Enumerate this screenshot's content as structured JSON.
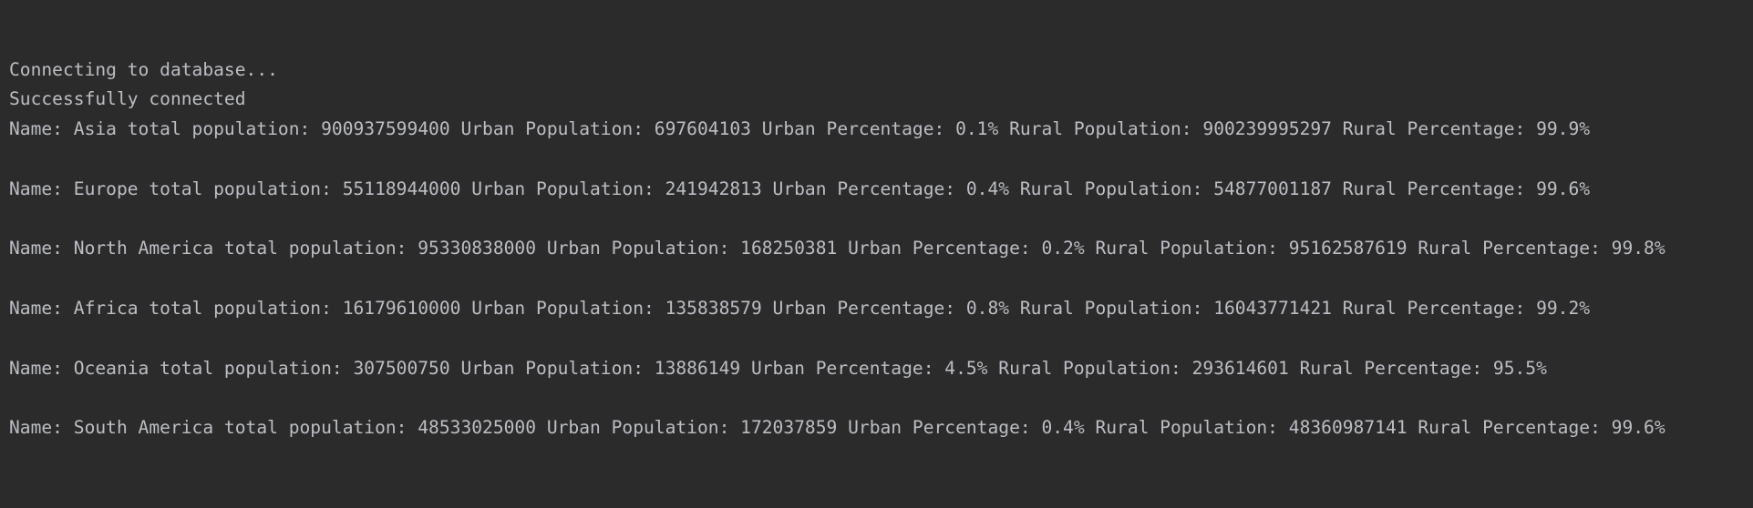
{
  "console": {
    "status": [
      "Connecting to database...",
      "Successfully connected"
    ],
    "records": [
      "Name: Asia total population: 900937599400 Urban Population: 697604103 Urban Percentage: 0.1% Rural Population: 900239995297 Rural Percentage: 99.9%",
      "Name: Europe total population: 55118944000 Urban Population: 241942813 Urban Percentage: 0.4% Rural Population: 54877001187 Rural Percentage: 99.6%",
      "Name: North America total population: 95330838000 Urban Population: 168250381 Urban Percentage: 0.2% Rural Population: 95162587619 Rural Percentage: 99.8%",
      "Name: Africa total population: 16179610000 Urban Population: 135838579 Urban Percentage: 0.8% Rural Population: 16043771421 Rural Percentage: 99.2%",
      "Name: Oceania total population: 307500750 Urban Population: 13886149 Urban Percentage: 4.5% Rural Population: 293614601 Rural Percentage: 95.5%",
      "Name: South America total population: 48533025000 Urban Population: 172037859 Urban Percentage: 0.4% Rural Population: 48360987141 Rural Percentage: 99.6%"
    ]
  }
}
